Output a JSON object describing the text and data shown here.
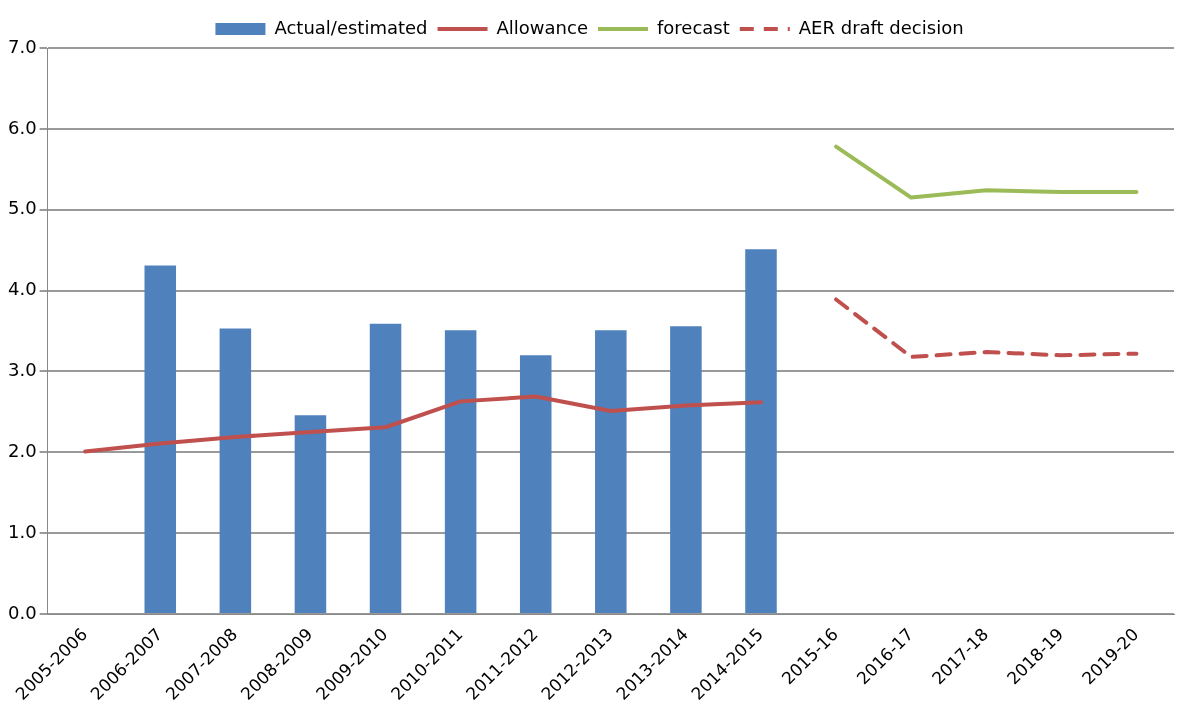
{
  "chart_data": {
    "type": "bar",
    "categories": [
      "2005-2006",
      "2006-2007",
      "2007-2008",
      "2008-2009",
      "2009-2010",
      "2010-2011",
      "2011-2012",
      "2012-2013",
      "2013-2014",
      "2014-2015",
      "2015-16",
      "2016-17",
      "2017-18",
      "2018-19",
      "2019-20"
    ],
    "series": [
      {
        "name": "Actual/estimated",
        "color": "#4f81bd",
        "values": [
          null,
          4.31,
          3.53,
          2.46,
          3.59,
          3.51,
          3.2,
          3.51,
          3.56,
          4.51,
          null,
          null,
          null,
          null,
          null
        ]
      },
      {
        "name": "Allowance",
        "type": "line",
        "color": "#c0504d",
        "line_style": "solid",
        "values": [
          2.01,
          2.11,
          2.19,
          2.25,
          2.31,
          2.63,
          2.69,
          2.51,
          2.58,
          2.62,
          null,
          null,
          null,
          null,
          null
        ]
      },
      {
        "name": "forecast",
        "type": "line",
        "color": "#9bbb59",
        "line_style": "solid",
        "values": [
          null,
          null,
          null,
          null,
          null,
          null,
          null,
          null,
          null,
          null,
          5.78,
          5.15,
          5.24,
          5.22,
          5.22
        ]
      },
      {
        "name": "AER draft decision",
        "type": "line",
        "color": "#c0504d",
        "line_style": "dashed",
        "values": [
          null,
          null,
          null,
          null,
          null,
          null,
          null,
          null,
          null,
          null,
          3.89,
          3.18,
          3.24,
          3.2,
          3.22
        ]
      }
    ],
    "ylim": [
      0,
      7
    ],
    "yticks": [
      {
        "value": 0,
        "label": "0.0"
      },
      {
        "value": 1,
        "label": "1.0"
      },
      {
        "value": 2,
        "label": "2.0"
      },
      {
        "value": 3,
        "label": "3.0"
      },
      {
        "value": 4,
        "label": "4.0"
      },
      {
        "value": 5,
        "label": "5.0"
      },
      {
        "value": 6,
        "label": "6.0"
      },
      {
        "value": 7,
        "label": "7.0"
      }
    ],
    "grid": "y",
    "legend": "top",
    "marker": "none"
  }
}
